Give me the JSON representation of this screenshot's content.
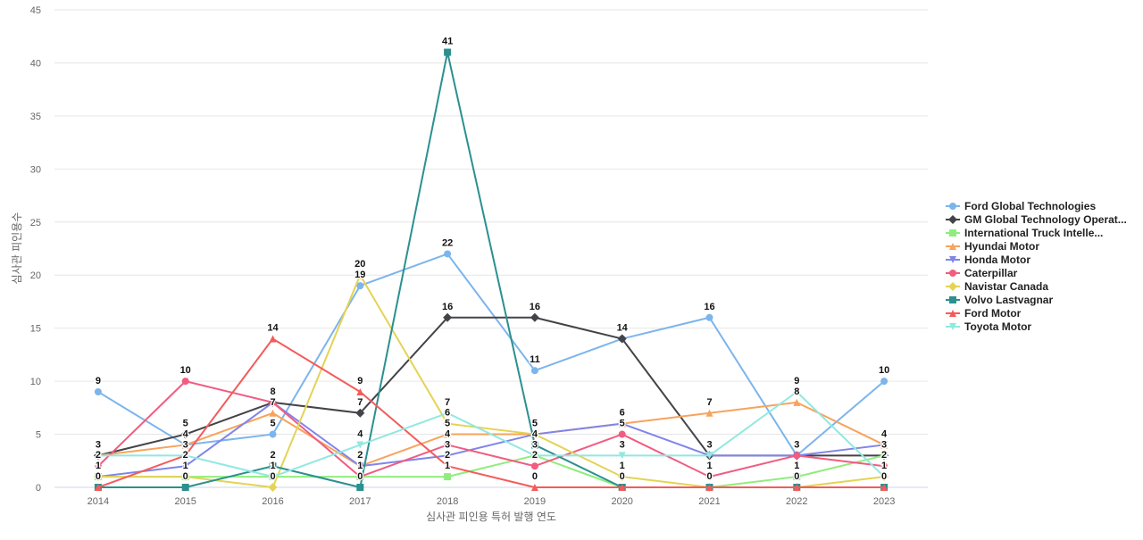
{
  "chart_data": {
    "type": "line",
    "xlabel": "심사관 피인용 특허 발행 연도",
    "ylabel": "심사관 피인용수",
    "ylim": [
      0,
      45
    ],
    "yticks": [
      0,
      5,
      10,
      15,
      20,
      25,
      30,
      35,
      40,
      45
    ],
    "x": [
      "2014",
      "2015",
      "2016",
      "2017",
      "2018",
      "2019",
      "2020",
      "2021",
      "2022",
      "2023"
    ],
    "grid": true,
    "legend_position": "right",
    "series": [
      {
        "name": "Ford Global Technologies",
        "color": "#7cb5ec",
        "marker": "circle",
        "values": [
          9,
          4,
          5,
          19,
          22,
          11,
          14,
          16,
          3,
          10
        ]
      },
      {
        "name": "GM Global Technology Operat...",
        "color": "#434348",
        "marker": "diamond",
        "values": [
          3,
          5,
          8,
          7,
          16,
          16,
          14,
          3,
          3,
          3
        ]
      },
      {
        "name": "International Truck Intelle...",
        "color": "#90ed7d",
        "marker": "square",
        "values": [
          1,
          1,
          1,
          1,
          1,
          3,
          0,
          0,
          1,
          3
        ]
      },
      {
        "name": "Hyundai Motor",
        "color": "#f7a35c",
        "marker": "triangle",
        "values": [
          3,
          4,
          7,
          2,
          5,
          5,
          6,
          7,
          8,
          4
        ]
      },
      {
        "name": "Honda Motor",
        "color": "#8085e9",
        "marker": "triangle-down",
        "values": [
          1,
          2,
          8,
          2,
          3,
          5,
          6,
          3,
          3,
          4
        ]
      },
      {
        "name": "Caterpillar",
        "color": "#f15c80",
        "marker": "circle",
        "values": [
          2,
          10,
          8,
          1,
          4,
          2,
          5,
          1,
          3,
          2
        ]
      },
      {
        "name": "Navistar Canada",
        "color": "#e4d354",
        "marker": "diamond",
        "values": [
          1,
          1,
          0,
          20,
          6,
          5,
          1,
          0,
          0,
          1
        ]
      },
      {
        "name": "Volvo Lastvagnar",
        "color": "#2b908f",
        "marker": "square",
        "values": [
          0,
          0,
          2,
          0,
          41,
          4,
          0,
          0,
          0,
          0
        ]
      },
      {
        "name": "Ford Motor",
        "color": "#f45b5b",
        "marker": "triangle",
        "values": [
          0,
          3,
          14,
          9,
          2,
          0,
          0,
          0,
          0,
          0
        ]
      },
      {
        "name": "Toyota Motor",
        "color": "#91e8e1",
        "marker": "triangle-down",
        "values": [
          3,
          3,
          1,
          4,
          7,
          3,
          3,
          3,
          9,
          1
        ]
      }
    ]
  }
}
